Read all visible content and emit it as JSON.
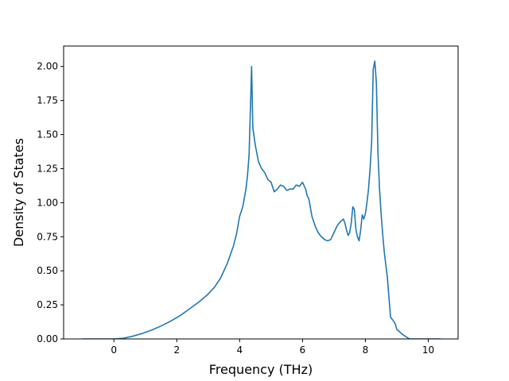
{
  "chart_data": {
    "type": "line",
    "title": "",
    "xlabel": "Frequency (THz)",
    "ylabel": "Density of States",
    "xlim": [
      -1.6,
      10.95
    ],
    "ylim": [
      0.0,
      2.15
    ],
    "xticks": [
      0,
      2,
      4,
      6,
      8,
      10
    ],
    "yticks": [
      0.0,
      0.25,
      0.5,
      0.75,
      1.0,
      1.25,
      1.5,
      1.75,
      2.0
    ],
    "xtick_labels": [
      "0",
      "2",
      "4",
      "6",
      "8",
      "10"
    ],
    "ytick_labels": [
      "0.00",
      "0.25",
      "0.50",
      "0.75",
      "1.00",
      "1.25",
      "1.50",
      "1.75",
      "2.00"
    ],
    "grid": false,
    "line_color": "#1f77b4",
    "series": [
      {
        "x": [
          -1.0,
          -0.5,
          0.0,
          0.3,
          0.6,
          0.9,
          1.2,
          1.5,
          1.8,
          2.1,
          2.4,
          2.7,
          3.0,
          3.2,
          3.4,
          3.6,
          3.8,
          3.9,
          4.0,
          4.1,
          4.2,
          4.25,
          4.3,
          4.35,
          4.38,
          4.42,
          4.5,
          4.6,
          4.7,
          4.8,
          4.9,
          5.0,
          5.1,
          5.2,
          5.3,
          5.4,
          5.5,
          5.6,
          5.7,
          5.8,
          5.9,
          6.0,
          6.1,
          6.15,
          6.2,
          6.3,
          6.4,
          6.5,
          6.6,
          6.7,
          6.8,
          6.9,
          7.0,
          7.1,
          7.2,
          7.3,
          7.35,
          7.4,
          7.45,
          7.5,
          7.55,
          7.6,
          7.65,
          7.7,
          7.75,
          7.8,
          7.85,
          7.9,
          7.95,
          8.0,
          8.05,
          8.1,
          8.15,
          8.2,
          8.25,
          8.3,
          8.35,
          8.4,
          8.45,
          8.5,
          8.55,
          8.6,
          8.7,
          8.8,
          8.9,
          8.95,
          9.0,
          9.2,
          9.4,
          9.5,
          9.7,
          10.0,
          10.4
        ],
        "y": [
          0.0,
          0.0,
          0.0,
          0.005,
          0.02,
          0.04,
          0.065,
          0.095,
          0.13,
          0.17,
          0.22,
          0.27,
          0.33,
          0.38,
          0.45,
          0.55,
          0.68,
          0.77,
          0.9,
          0.97,
          1.1,
          1.2,
          1.35,
          1.75,
          2.0,
          1.55,
          1.42,
          1.3,
          1.25,
          1.22,
          1.17,
          1.15,
          1.08,
          1.1,
          1.13,
          1.12,
          1.09,
          1.1,
          1.1,
          1.13,
          1.12,
          1.15,
          1.1,
          1.05,
          1.03,
          0.9,
          0.83,
          0.78,
          0.75,
          0.73,
          0.72,
          0.73,
          0.78,
          0.83,
          0.86,
          0.88,
          0.85,
          0.8,
          0.76,
          0.78,
          0.85,
          0.97,
          0.95,
          0.8,
          0.75,
          0.72,
          0.8,
          0.91,
          0.88,
          0.92,
          1.0,
          1.1,
          1.25,
          1.45,
          1.98,
          2.04,
          1.88,
          1.37,
          1.1,
          0.92,
          0.77,
          0.64,
          0.45,
          0.16,
          0.13,
          0.11,
          0.07,
          0.03,
          0.0,
          0.0,
          0.0,
          0.0,
          0.0
        ]
      }
    ]
  }
}
